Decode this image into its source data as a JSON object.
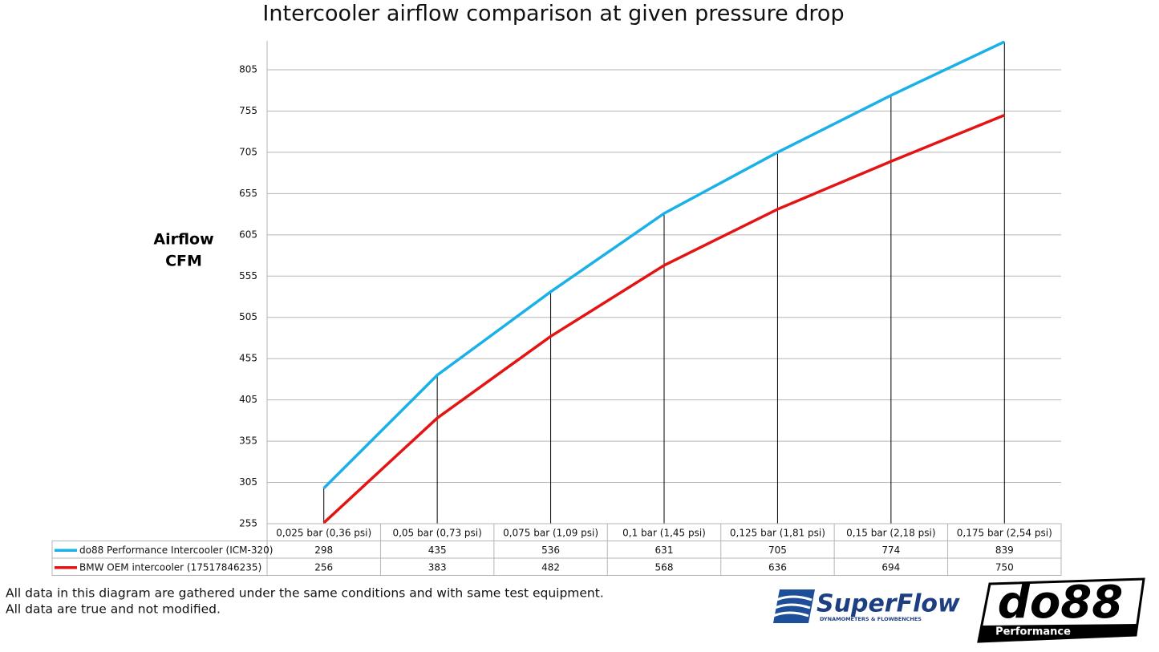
{
  "chart_data": {
    "type": "line",
    "title": "Intercooler airflow comparison at given pressure drop",
    "ylabel": [
      "Airflow",
      "CFM"
    ],
    "categories": [
      "0,025 bar (0,36 psi)",
      "0,05 bar (0,73 psi)",
      "0,075 bar (1,09 psi)",
      "0,1 bar (1,45 psi)",
      "0,125 bar (1,81 psi)",
      "0,15 bar (2,18 psi)",
      "0,175 bar (2,54 psi)"
    ],
    "series": [
      {
        "name": "do88 Performance Intercooler (ICM-320)",
        "color": "#1ab0e8",
        "values": [
          298,
          435,
          536,
          631,
          705,
          774,
          839
        ]
      },
      {
        "name": "BMW OEM intercooler (17517846235)",
        "color": "#e31414",
        "values": [
          256,
          383,
          482,
          568,
          636,
          694,
          750
        ]
      }
    ],
    "ylim": [
      255,
      840
    ],
    "yticks": [
      255,
      305,
      355,
      405,
      455,
      505,
      555,
      605,
      655,
      705,
      755,
      805
    ],
    "grid": true,
    "drop_lines": true,
    "data_table": true
  },
  "footer": {
    "notes": [
      "All data in this diagram are gathered under the same conditions and with same test equipment.",
      "All data are true and not modified."
    ],
    "logos": {
      "superflow": "SuperFlow",
      "superflow_tagline": "DYNAMOMETERS & FLOWBENCHES",
      "do88": "do88",
      "do88_tagline": "Performance"
    }
  }
}
